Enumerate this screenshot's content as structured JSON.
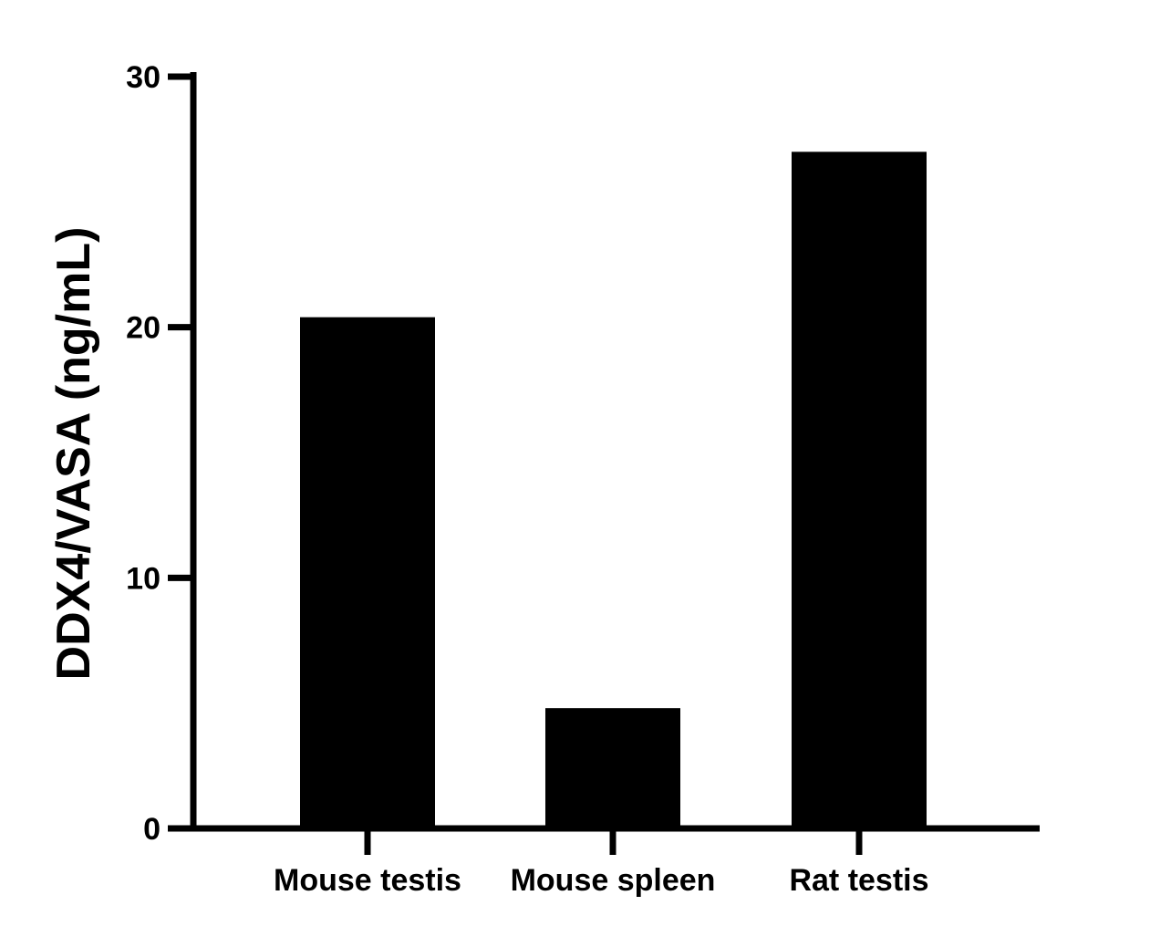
{
  "chart_data": {
    "type": "bar",
    "title": "",
    "xlabel": "",
    "ylabel": "DDX4/VASA (ng/mL)",
    "categories": [
      "Mouse testis",
      "Mouse spleen",
      "Rat testis"
    ],
    "values": [
      20.4,
      4.8,
      27.0
    ],
    "ylim": [
      0,
      30
    ],
    "yticks": [
      "0",
      "10",
      "20",
      "30"
    ],
    "grid": false,
    "bar_color": "#000000"
  }
}
